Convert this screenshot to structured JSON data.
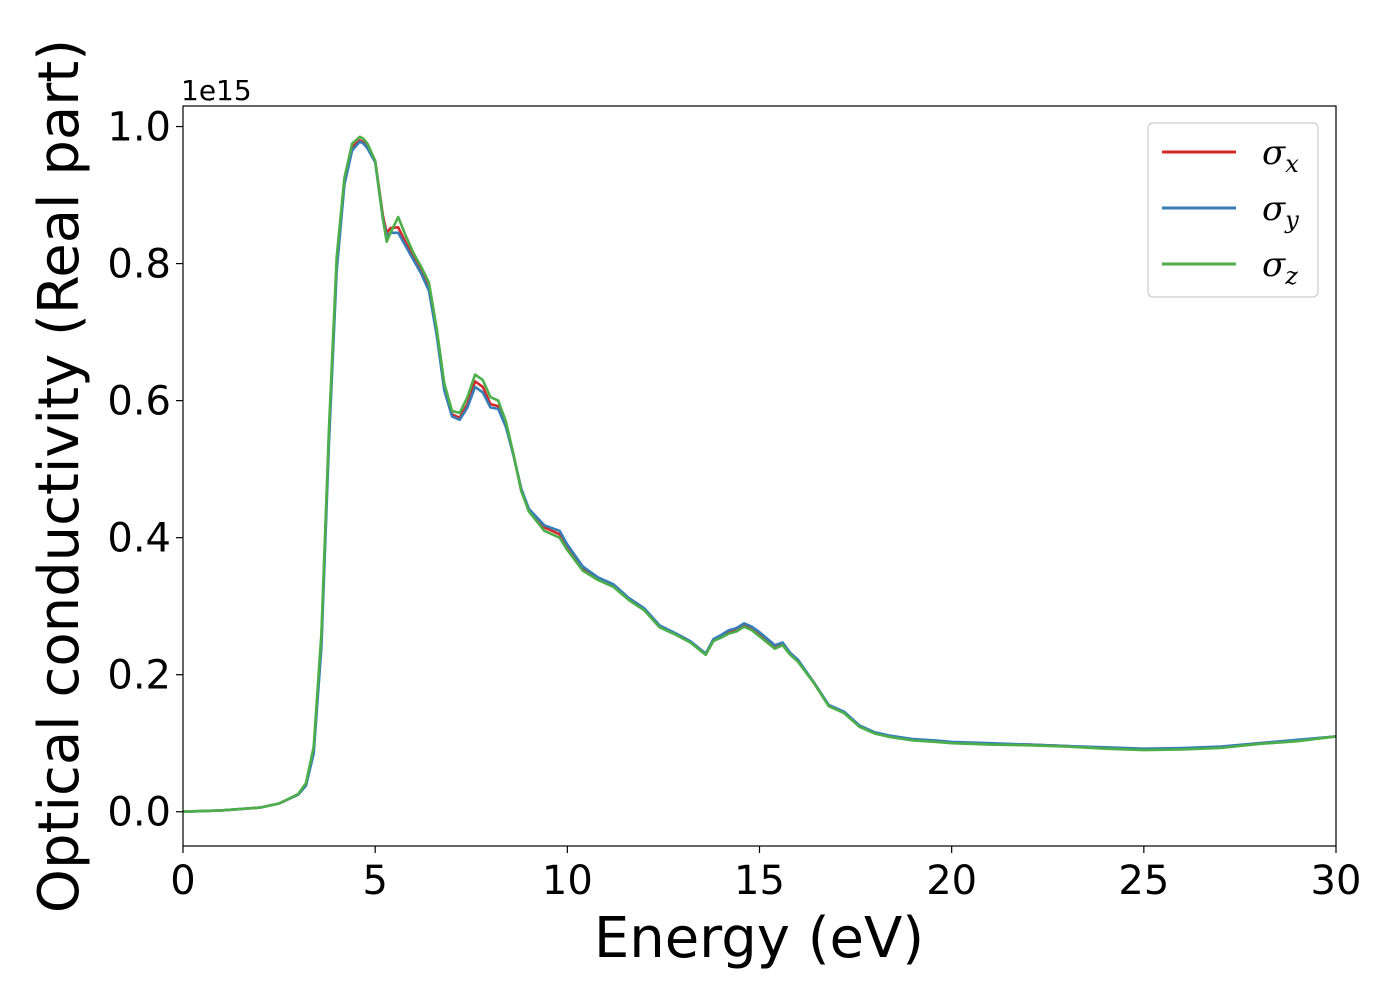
{
  "chart_data": {
    "type": "line",
    "title": "",
    "xlabel": "Energy (eV)",
    "ylabel": "Optical conductivity (Real part)",
    "y_offset_label": "1e15",
    "xlim": [
      0,
      30
    ],
    "ylim": [
      -0.05,
      1.03
    ],
    "xticks": [
      0,
      5,
      10,
      15,
      20,
      25,
      30
    ],
    "yticks": [
      0.0,
      0.2,
      0.4,
      0.6,
      0.8,
      1.0
    ],
    "xtick_labels": [
      "0",
      "5",
      "10",
      "15",
      "20",
      "25",
      "30"
    ],
    "ytick_labels": [
      "0.0",
      "0.2",
      "0.4",
      "0.6",
      "0.8",
      "1.0"
    ],
    "grid": false,
    "legend_position": "top-right",
    "series": [
      {
        "name": "σ",
        "subscript": "x",
        "color": "#d62728",
        "x": [
          0,
          1,
          2,
          2.5,
          3,
          3.2,
          3.4,
          3.6,
          3.8,
          4.0,
          4.2,
          4.4,
          4.6,
          4.7,
          4.8,
          5.0,
          5.2,
          5.3,
          5.4,
          5.6,
          5.8,
          6.0,
          6.2,
          6.4,
          6.6,
          6.8,
          7.0,
          7.2,
          7.4,
          7.6,
          7.8,
          8.0,
          8.2,
          8.4,
          8.6,
          8.8,
          9.0,
          9.4,
          9.8,
          10.0,
          10.4,
          10.8,
          11.2,
          11.6,
          12.0,
          12.4,
          12.8,
          13.2,
          13.6,
          13.8,
          14.0,
          14.2,
          14.4,
          14.6,
          14.8,
          15.0,
          15.4,
          15.6,
          15.8,
          16.0,
          16.4,
          16.8,
          17.2,
          17.6,
          18.0,
          18.4,
          19.0,
          19.6,
          20.0,
          21.0,
          22.0,
          23.0,
          24.0,
          25.0,
          26.0,
          27.0,
          28.0,
          29.0,
          30.0
        ],
        "y": [
          0.0,
          0.002,
          0.006,
          0.012,
          0.025,
          0.04,
          0.09,
          0.25,
          0.55,
          0.8,
          0.92,
          0.97,
          0.98,
          0.977,
          0.97,
          0.95,
          0.87,
          0.845,
          0.852,
          0.853,
          0.83,
          0.81,
          0.79,
          0.765,
          0.7,
          0.62,
          0.58,
          0.575,
          0.595,
          0.628,
          0.62,
          0.595,
          0.592,
          0.565,
          0.52,
          0.47,
          0.44,
          0.415,
          0.405,
          0.385,
          0.355,
          0.34,
          0.33,
          0.31,
          0.295,
          0.27,
          0.26,
          0.248,
          0.23,
          0.25,
          0.255,
          0.262,
          0.265,
          0.272,
          0.267,
          0.258,
          0.24,
          0.245,
          0.23,
          0.22,
          0.19,
          0.155,
          0.145,
          0.125,
          0.115,
          0.11,
          0.105,
          0.103,
          0.101,
          0.099,
          0.098,
          0.096,
          0.093,
          0.091,
          0.092,
          0.094,
          0.1,
          0.104,
          0.11
        ]
      },
      {
        "name": "σ",
        "subscript": "y",
        "color": "#377eb8",
        "x": [
          0,
          1,
          2,
          2.5,
          3,
          3.2,
          3.4,
          3.6,
          3.8,
          4.0,
          4.2,
          4.4,
          4.6,
          4.7,
          4.8,
          5.0,
          5.2,
          5.3,
          5.4,
          5.6,
          5.8,
          6.0,
          6.2,
          6.4,
          6.6,
          6.8,
          7.0,
          7.2,
          7.4,
          7.6,
          7.8,
          8.0,
          8.2,
          8.4,
          8.6,
          8.8,
          9.0,
          9.4,
          9.8,
          10.0,
          10.4,
          10.8,
          11.2,
          11.6,
          12.0,
          12.4,
          12.8,
          13.2,
          13.6,
          13.8,
          14.0,
          14.2,
          14.4,
          14.6,
          14.8,
          15.0,
          15.4,
          15.6,
          15.8,
          16.0,
          16.4,
          16.8,
          17.2,
          17.6,
          18.0,
          18.4,
          19.0,
          19.6,
          20.0,
          21.0,
          22.0,
          23.0,
          24.0,
          25.0,
          26.0,
          27.0,
          28.0,
          29.0,
          30.0
        ],
        "y": [
          0.0,
          0.002,
          0.006,
          0.012,
          0.025,
          0.038,
          0.085,
          0.24,
          0.54,
          0.79,
          0.915,
          0.965,
          0.978,
          0.975,
          0.968,
          0.948,
          0.865,
          0.84,
          0.845,
          0.845,
          0.825,
          0.805,
          0.785,
          0.76,
          0.695,
          0.615,
          0.577,
          0.572,
          0.59,
          0.62,
          0.612,
          0.59,
          0.588,
          0.562,
          0.52,
          0.472,
          0.442,
          0.418,
          0.41,
          0.39,
          0.358,
          0.342,
          0.332,
          0.312,
          0.297,
          0.272,
          0.261,
          0.249,
          0.231,
          0.252,
          0.258,
          0.265,
          0.268,
          0.275,
          0.27,
          0.262,
          0.243,
          0.247,
          0.232,
          0.222,
          0.19,
          0.156,
          0.146,
          0.126,
          0.116,
          0.111,
          0.106,
          0.104,
          0.102,
          0.1,
          0.098,
          0.096,
          0.094,
          0.092,
          0.093,
          0.095,
          0.1,
          0.105,
          0.11
        ]
      },
      {
        "name": "σ",
        "subscript": "z",
        "color": "#4daf4a",
        "x": [
          0,
          1,
          2,
          2.5,
          3,
          3.2,
          3.4,
          3.6,
          3.8,
          4.0,
          4.2,
          4.4,
          4.6,
          4.7,
          4.8,
          5.0,
          5.2,
          5.3,
          5.4,
          5.6,
          5.8,
          6.0,
          6.2,
          6.4,
          6.6,
          6.8,
          7.0,
          7.2,
          7.4,
          7.6,
          7.8,
          8.0,
          8.2,
          8.4,
          8.6,
          8.8,
          9.0,
          9.4,
          9.8,
          10.0,
          10.4,
          10.8,
          11.2,
          11.6,
          12.0,
          12.4,
          12.8,
          13.2,
          13.6,
          13.8,
          14.0,
          14.2,
          14.4,
          14.6,
          14.8,
          15.0,
          15.4,
          15.6,
          15.8,
          16.0,
          16.4,
          16.8,
          17.2,
          17.6,
          18.0,
          18.4,
          19.0,
          19.6,
          20.0,
          21.0,
          22.0,
          23.0,
          24.0,
          25.0,
          26.0,
          27.0,
          28.0,
          29.0,
          30.0
        ],
        "y": [
          0.0,
          0.002,
          0.006,
          0.012,
          0.026,
          0.042,
          0.095,
          0.26,
          0.56,
          0.81,
          0.925,
          0.975,
          0.985,
          0.982,
          0.975,
          0.95,
          0.865,
          0.832,
          0.845,
          0.868,
          0.84,
          0.815,
          0.795,
          0.772,
          0.705,
          0.625,
          0.585,
          0.582,
          0.605,
          0.638,
          0.63,
          0.605,
          0.6,
          0.57,
          0.522,
          0.468,
          0.438,
          0.41,
          0.4,
          0.382,
          0.352,
          0.338,
          0.328,
          0.309,
          0.294,
          0.269,
          0.259,
          0.247,
          0.229,
          0.249,
          0.254,
          0.26,
          0.263,
          0.27,
          0.265,
          0.256,
          0.238,
          0.243,
          0.229,
          0.219,
          0.189,
          0.154,
          0.144,
          0.124,
          0.114,
          0.109,
          0.104,
          0.102,
          0.1,
          0.098,
          0.097,
          0.095,
          0.092,
          0.09,
          0.091,
          0.093,
          0.099,
          0.103,
          0.11
        ]
      }
    ]
  }
}
